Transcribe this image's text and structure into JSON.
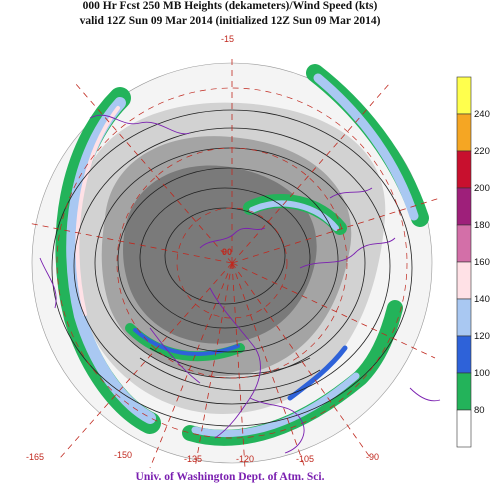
{
  "title_line1": "000 Hr Fcst 250 MB Heights (dekameters)/Wind Speed (kts)",
  "title_line2": "valid 12Z Sun 09 Mar 2014 (initialized 12Z Sun 09 Mar 2014)",
  "credit": "Univ. of Washington Dept. of Atm. Sci.",
  "longitude_labels": [
    "-165",
    "-150",
    "-135",
    "-120",
    "-105",
    "-90",
    "-15"
  ],
  "center_label": "90",
  "colorbar": {
    "labels": [
      "240",
      "220",
      "200",
      "180",
      "160",
      "140",
      "120",
      "100",
      "80"
    ],
    "colors": [
      "#ffff4d",
      "#f5a623",
      "#c8102e",
      "#9e1f7a",
      "#d36fa8",
      "#ffe1e6",
      "#a9c8f2",
      "#2e62d9",
      "#23b35a",
      "#ffffff"
    ]
  },
  "colors": {
    "land_outline": "#7a1fb0",
    "lon_lines": "#c0281e",
    "height_contours": "#222222",
    "jet_green": "#23b35a",
    "jet_light_blue": "#a9c8f2",
    "jet_blue": "#2e62d9",
    "jet_pink": "#ffe1e6",
    "shade_light": "#d2d2d2",
    "shade_mid": "#a4a4a4",
    "shade_dark": "#7a7a7a"
  }
}
